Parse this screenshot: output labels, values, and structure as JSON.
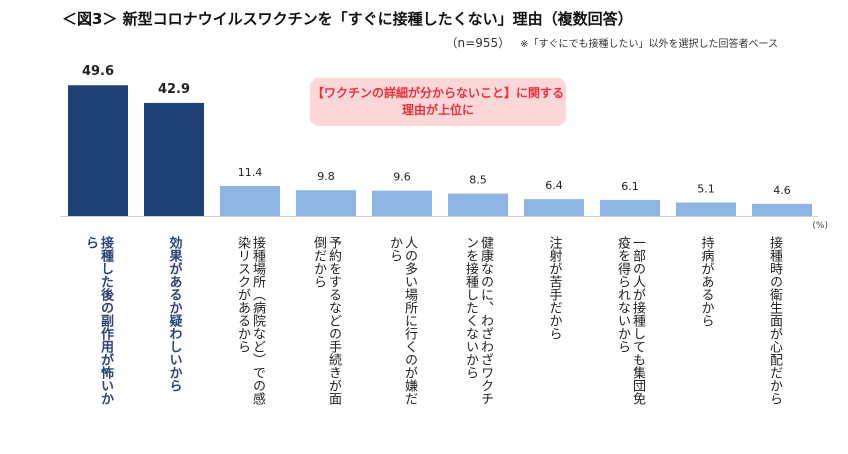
{
  "title": "＜図3＞ 新型コロナウイルスワクチンを「すぐに接種したくない」理由（複数回答）",
  "note": {
    "n": "（n=955）",
    "text": "※「すぐにでも接種したい」以外を選択した回答者ベース"
  },
  "callout": {
    "line1": "【ワクチンの詳細が分からないこと】に関する",
    "line2": "理由が上位に"
  },
  "unit": "(%)",
  "colors": {
    "highlight": "#1f4278",
    "normal": "#8eb4e3",
    "callout_bg": "#fbd7d9",
    "callout_text": "#e8323b"
  },
  "chart_data": {
    "type": "bar",
    "categories": [
      "接種した後の副作用が怖いから",
      "効果があるか疑わしいから",
      "接種場所（病院など）での感染リスクがあるから",
      "予約をするなどの手続きが面倒だから",
      "人の多い場所に行くのが嫌だから",
      "健康なのに、わざわざワクチンを接種したくないから",
      "注射が苦手だから",
      "一部の人が接種しても集団免疫を得られないから",
      "持病があるから",
      "接種時の衛生面が心配だから"
    ],
    "values": [
      49.6,
      42.9,
      11.4,
      9.8,
      9.6,
      8.5,
      6.4,
      6.1,
      5.1,
      4.6
    ],
    "value_labels": [
      "49.6",
      "42.9",
      "11.4",
      "9.8",
      "9.6",
      "8.5",
      "6.4",
      "6.1",
      "5.1",
      "4.6"
    ],
    "highlighted": [
      0,
      1
    ],
    "ylim": [
      0,
      55
    ]
  }
}
